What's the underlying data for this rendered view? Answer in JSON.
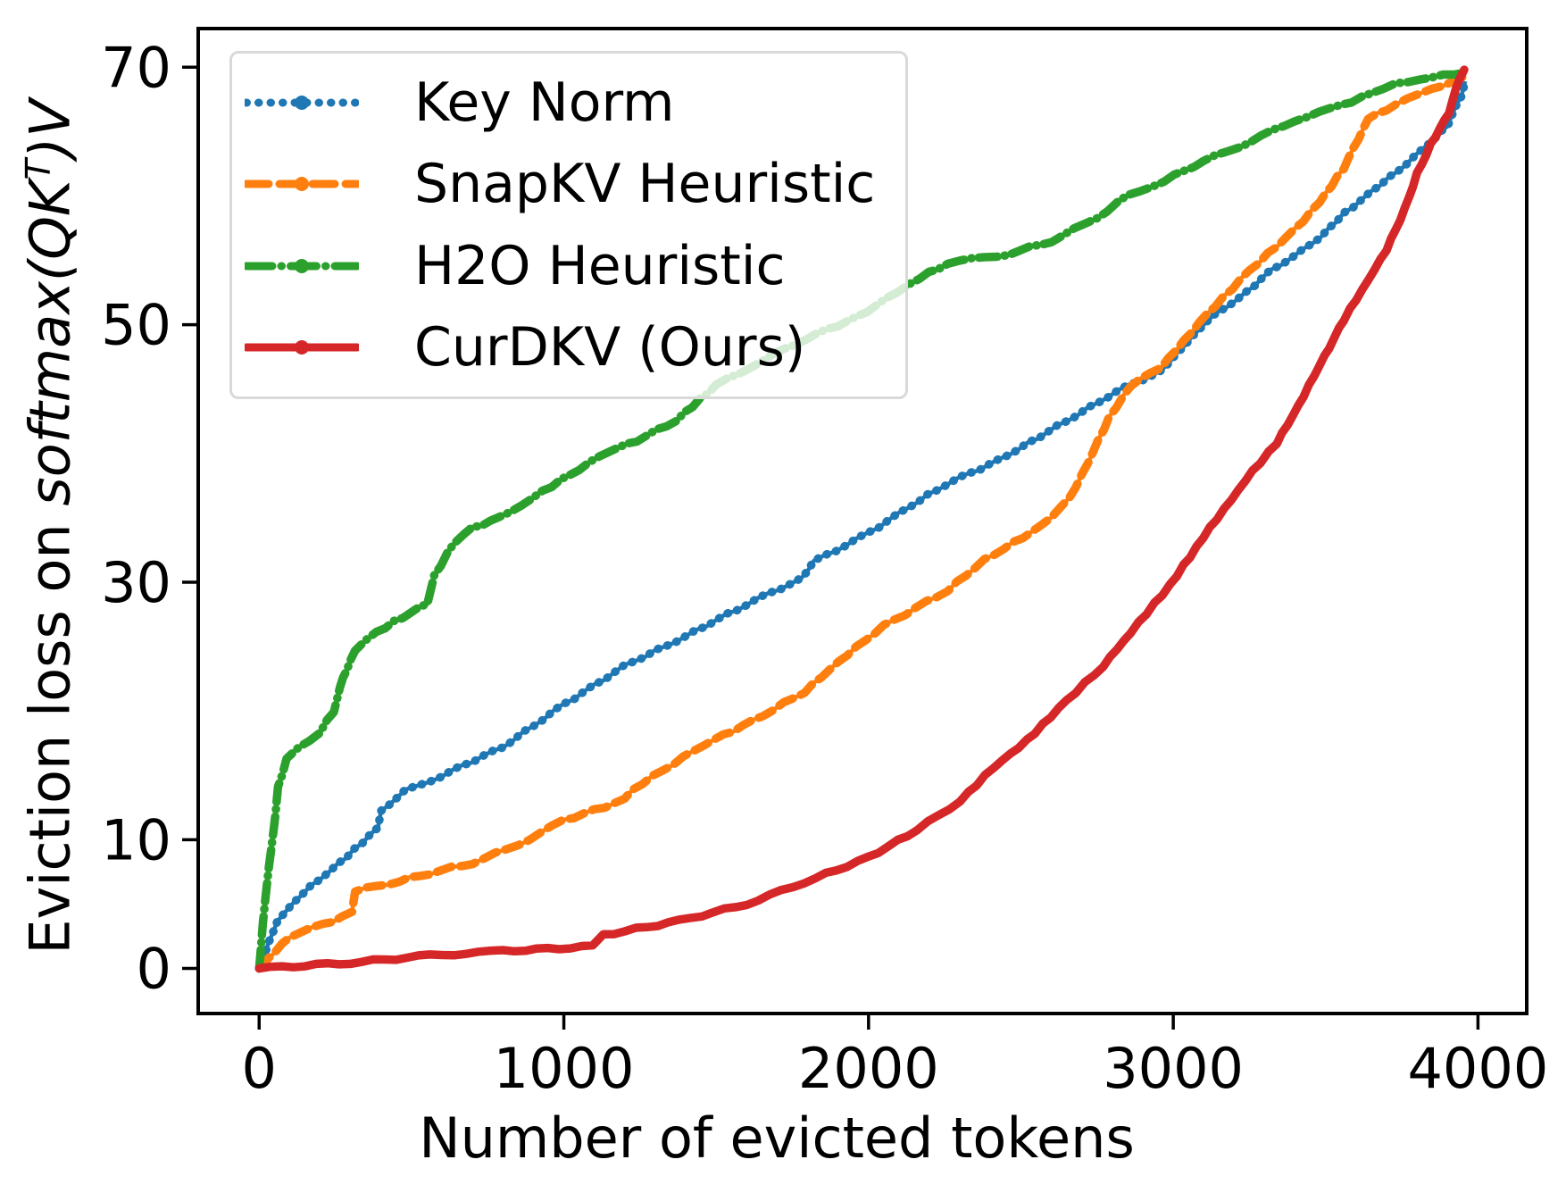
{
  "figure": {
    "background": "#ffffff",
    "axis_color": "#000000"
  },
  "chart_data": {
    "type": "line",
    "title": "",
    "xlabel": "Number of evicted tokens",
    "ylabel": {
      "prefix": "Eviction loss on ",
      "math": "softmax(QK",
      "sup": "T",
      "suffix": ")V"
    },
    "xlim": [
      -200,
      4160
    ],
    "ylim": [
      -3.5,
      73
    ],
    "x_tick_values": [
      0,
      1000,
      2000,
      3000,
      4000
    ],
    "x_tick_labels": [
      "0",
      "1000",
      "2000",
      "3000",
      "4000"
    ],
    "y_tick_values": [
      0,
      10,
      30,
      50,
      70
    ],
    "y_tick_labels": [
      "0",
      "10",
      "30",
      "50",
      "70"
    ],
    "grid": false,
    "legend": {
      "position": "upper-left",
      "frame": true
    },
    "series": [
      {
        "name": "Key Norm",
        "color": "#1f77b4",
        "dash": "dotted",
        "marker": "circle",
        "points": [
          [
            0,
            0
          ],
          [
            60,
            3.7
          ],
          [
            140,
            5.8
          ],
          [
            260,
            8.1
          ],
          [
            390,
            10.9
          ],
          [
            400,
            12.2
          ],
          [
            480,
            13.8
          ],
          [
            600,
            15.0
          ],
          [
            800,
            17.2
          ],
          [
            1000,
            20.5
          ],
          [
            1200,
            23.5
          ],
          [
            1400,
            25.8
          ],
          [
            1600,
            28.3
          ],
          [
            1780,
            30.3
          ],
          [
            1820,
            31.6
          ],
          [
            2000,
            33.8
          ],
          [
            2130,
            35.8
          ],
          [
            2260,
            37.7
          ],
          [
            2430,
            39.5
          ],
          [
            2620,
            42.1
          ],
          [
            2820,
            44.9
          ],
          [
            2960,
            46.4
          ],
          [
            3110,
            50.3
          ],
          [
            3240,
            52.5
          ],
          [
            3320,
            54.2
          ],
          [
            3460,
            56.3
          ],
          [
            3560,
            58.6
          ],
          [
            3680,
            60.9
          ],
          [
            3760,
            62.4
          ],
          [
            3830,
            63.8
          ],
          [
            3900,
            65.5
          ],
          [
            3945,
            67.8
          ],
          [
            3958,
            68.9
          ]
        ]
      },
      {
        "name": "SnapKV Heuristic",
        "color": "#ff7f0e",
        "dash": "dashed",
        "marker": "circle",
        "points": [
          [
            0,
            0
          ],
          [
            100,
            2.5
          ],
          [
            210,
            3.4
          ],
          [
            305,
            4.3
          ],
          [
            315,
            6.0
          ],
          [
            460,
            6.8
          ],
          [
            560,
            7.4
          ],
          [
            700,
            8.2
          ],
          [
            850,
            9.6
          ],
          [
            1000,
            11.5
          ],
          [
            1200,
            13.1
          ],
          [
            1225,
            13.9
          ],
          [
            1460,
            17.4
          ],
          [
            1620,
            19.2
          ],
          [
            1790,
            21.5
          ],
          [
            1930,
            24.4
          ],
          [
            2050,
            26.6
          ],
          [
            2260,
            29.4
          ],
          [
            2380,
            31.7
          ],
          [
            2570,
            34.4
          ],
          [
            2660,
            36.5
          ],
          [
            2720,
            39.3
          ],
          [
            2790,
            42.8
          ],
          [
            2860,
            45.3
          ],
          [
            2960,
            46.7
          ],
          [
            3110,
            50.8
          ],
          [
            3250,
            54.2
          ],
          [
            3400,
            57.4
          ],
          [
            3480,
            59.5
          ],
          [
            3560,
            62.2
          ],
          [
            3640,
            66.0
          ],
          [
            3730,
            67.1
          ],
          [
            3850,
            68.3
          ],
          [
            3958,
            69.3
          ]
        ]
      },
      {
        "name": "H2O Heuristic",
        "color": "#2ca02c",
        "dash": "dashdot",
        "marker": "circle",
        "points": [
          [
            0,
            0
          ],
          [
            12,
            3.5
          ],
          [
            35,
            8.5
          ],
          [
            55,
            12.2
          ],
          [
            62,
            14.1
          ],
          [
            90,
            16.2
          ],
          [
            130,
            17.1
          ],
          [
            200,
            18.4
          ],
          [
            245,
            20.0
          ],
          [
            275,
            22.6
          ],
          [
            315,
            24.7
          ],
          [
            385,
            26.1
          ],
          [
            500,
            27.7
          ],
          [
            552,
            28.4
          ],
          [
            575,
            30.5
          ],
          [
            640,
            33.1
          ],
          [
            700,
            34.2
          ],
          [
            790,
            35.0
          ],
          [
            900,
            36.6
          ],
          [
            1050,
            38.8
          ],
          [
            1150,
            40.2
          ],
          [
            1240,
            41.0
          ],
          [
            1370,
            42.6
          ],
          [
            1500,
            45.3
          ],
          [
            1650,
            47.2
          ],
          [
            1800,
            49.0
          ],
          [
            1966,
            50.6
          ],
          [
            2090,
            52.5
          ],
          [
            2135,
            53.2
          ],
          [
            2260,
            54.8
          ],
          [
            2460,
            55.5
          ],
          [
            2600,
            56.5
          ],
          [
            2750,
            58.3
          ],
          [
            2850,
            60.0
          ],
          [
            2970,
            61.2
          ],
          [
            3100,
            62.7
          ],
          [
            3250,
            64.2
          ],
          [
            3400,
            65.9
          ],
          [
            3520,
            66.8
          ],
          [
            3650,
            67.9
          ],
          [
            3730,
            68.8
          ],
          [
            3850,
            69.2
          ],
          [
            3958,
            69.6
          ]
        ]
      },
      {
        "name": "CurDKV (Ours)",
        "color": "#d62728",
        "dash": "solid",
        "marker": "circle",
        "points": [
          [
            0,
            0
          ],
          [
            300,
            0.45
          ],
          [
            560,
            1.0
          ],
          [
            800,
            1.35
          ],
          [
            1095,
            1.7
          ],
          [
            1130,
            2.6
          ],
          [
            1380,
            3.7
          ],
          [
            1600,
            5.0
          ],
          [
            1790,
            6.7
          ],
          [
            2000,
            8.6
          ],
          [
            2160,
            10.8
          ],
          [
            2300,
            13.0
          ],
          [
            2410,
            15.6
          ],
          [
            2520,
            17.7
          ],
          [
            2650,
            20.8
          ],
          [
            2770,
            23.5
          ],
          [
            2860,
            26.1
          ],
          [
            2990,
            29.8
          ],
          [
            3120,
            34.2
          ],
          [
            3260,
            38.6
          ],
          [
            3340,
            40.8
          ],
          [
            3410,
            43.7
          ],
          [
            3480,
            46.8
          ],
          [
            3560,
            50.4
          ],
          [
            3640,
            53.5
          ],
          [
            3700,
            55.8
          ],
          [
            3760,
            59.0
          ],
          [
            3800,
            61.7
          ],
          [
            3845,
            64.0
          ],
          [
            3875,
            65.2
          ],
          [
            3905,
            66.5
          ],
          [
            3940,
            69.2
          ],
          [
            3955,
            69.8
          ]
        ]
      }
    ]
  }
}
